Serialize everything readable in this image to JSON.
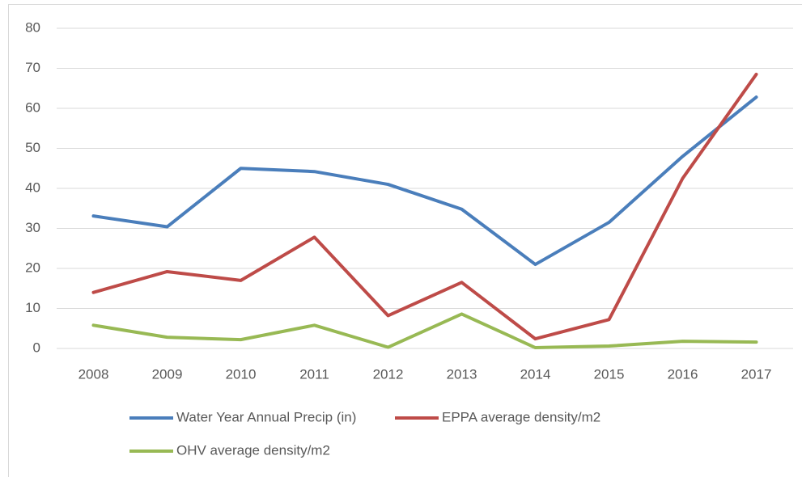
{
  "chart_data": {
    "type": "line",
    "categories": [
      "2008",
      "2009",
      "2010",
      "2011",
      "2012",
      "2013",
      "2014",
      "2015",
      "2016",
      "2017"
    ],
    "series": [
      {
        "name": "Water Year Annual Precip (in)",
        "color": "#4a7ebb",
        "values": [
          33.1,
          30.4,
          45,
          44.2,
          41,
          34.8,
          21,
          31.5,
          48,
          62.8
        ]
      },
      {
        "name": "EPPA average density/m2",
        "color": "#be4b48",
        "values": [
          14,
          19.2,
          17,
          27.8,
          8.2,
          16.5,
          2.4,
          7.2,
          42.5,
          68.5
        ]
      },
      {
        "name": "OHV average density/m2",
        "color": "#98b954",
        "values": [
          5.8,
          2.8,
          2.2,
          5.8,
          0.3,
          8.6,
          0.2,
          0.6,
          1.8,
          1.6
        ]
      }
    ],
    "ylim": [
      0,
      80
    ],
    "yticks": [
      0,
      10,
      20,
      30,
      40,
      50,
      60,
      70,
      80
    ],
    "grid": true,
    "legend": "bottom"
  }
}
